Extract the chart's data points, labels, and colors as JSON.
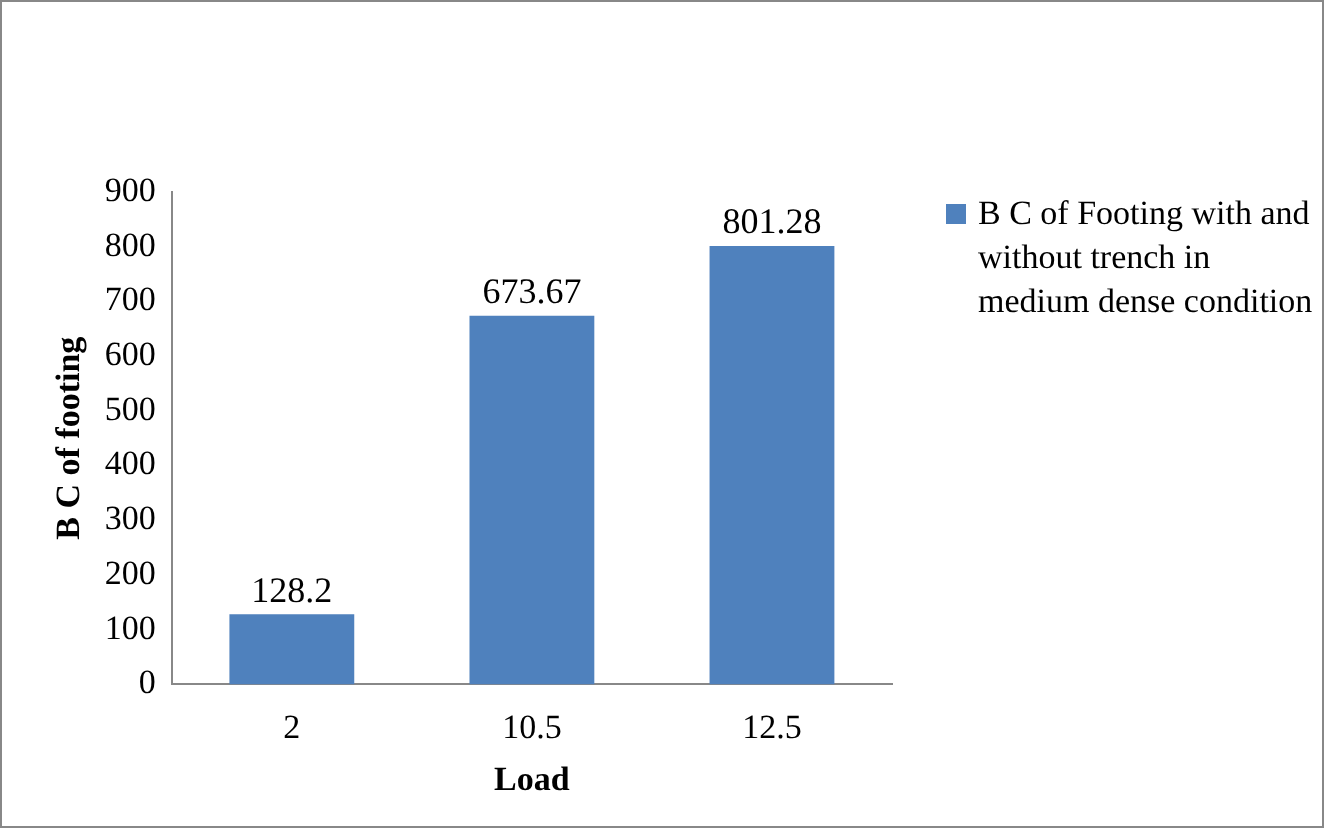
{
  "chart_data": {
    "type": "bar",
    "categories": [
      "2",
      "10.5",
      "12.5"
    ],
    "series": [
      {
        "name": "B C of Footing with and without trench in medium dense condition",
        "color": "#4f81bd",
        "values": [
          128.2,
          673.67,
          801.28
        ]
      }
    ],
    "xlabel": "Load",
    "ylabel": "B C of footing",
    "ylim": [
      0,
      900
    ],
    "yticks": [
      0,
      100,
      200,
      300,
      400,
      500,
      600,
      700,
      800,
      900
    ],
    "grid": false,
    "legend": "right",
    "data_labels": true
  }
}
